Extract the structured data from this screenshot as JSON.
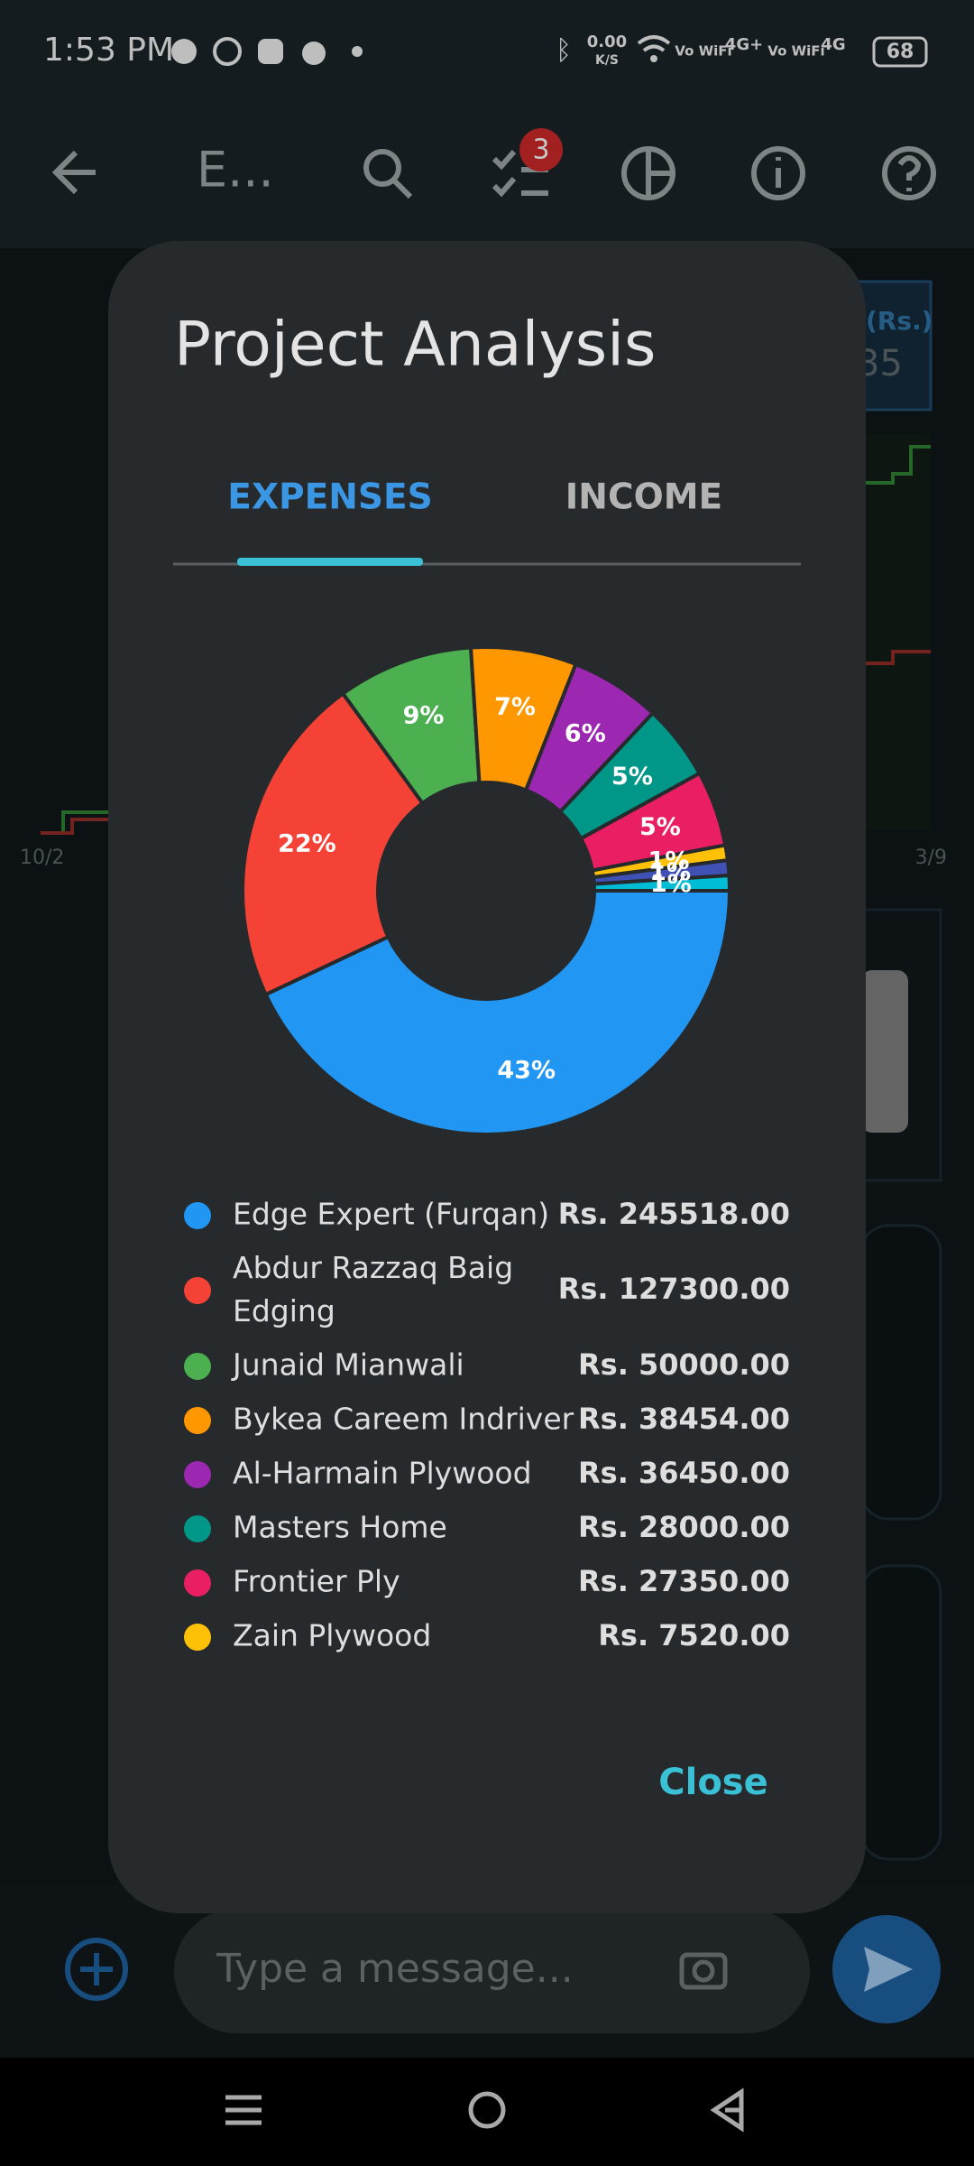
{
  "status_bar": {
    "time": "1:53 PM",
    "speed": "0.00",
    "speed_unit": "K/S",
    "wifi_call_1": "Vo WiFi",
    "network_1": "4G+",
    "wifi_call_2": "Vo WiFi",
    "network_2": "4G",
    "battery": "68"
  },
  "app_bar": {
    "title": "E...",
    "badge": "3"
  },
  "background": {
    "axis_label": "(Rs.)",
    "value": "35",
    "x_start": "10/2",
    "x_end": "3/9"
  },
  "dialog": {
    "title": "Project Analysis",
    "tabs": [
      "EXPENSES",
      "INCOME"
    ],
    "chart": {
      "type": "pie",
      "categories": [
        "Edge Expert (Furqan)",
        "Abdur Razzaq Baig Edging",
        "Junaid Mianwali",
        "Bykea Careem Indriver",
        "Al-Harmain Plywood",
        "Masters Home",
        "Frontier Ply",
        "Zain Plywood",
        null,
        null
      ],
      "values": [
        43,
        22,
        9,
        7,
        6,
        5,
        5,
        1,
        1,
        1
      ],
      "value_labels": [
        "43%",
        "22%",
        "9%",
        "7%",
        "6%",
        "5%",
        "5%",
        "1%",
        "1%",
        "1%"
      ],
      "colors": [
        "#2196f3",
        "#f44336",
        "#4caf50",
        "#ff9800",
        "#9c27b0",
        "#009688",
        "#e91e63",
        "#ffc107",
        "#3f51b5",
        "#00bcd4"
      ]
    },
    "legend": [
      {
        "name": "Edge Expert (Furqan)",
        "amount": "Rs. 245518.00"
      },
      {
        "name": "Abdur Razzaq Baig Edging",
        "amount": "Rs. 127300.00"
      },
      {
        "name": "Junaid Mianwali",
        "amount": "Rs. 50000.00"
      },
      {
        "name": "Bykea Careem Indriver",
        "amount": "Rs. 38454.00"
      },
      {
        "name": "Al-Harmain Plywood",
        "amount": "Rs. 36450.00"
      },
      {
        "name": "Masters Home",
        "amount": "Rs. 28000.00"
      },
      {
        "name": "Frontier Ply",
        "amount": "Rs. 27350.00"
      },
      {
        "name": "Zain Plywood",
        "amount": "Rs. 7520.00"
      }
    ],
    "close": "Close"
  },
  "composer": {
    "placeholder": "Type a message..."
  }
}
